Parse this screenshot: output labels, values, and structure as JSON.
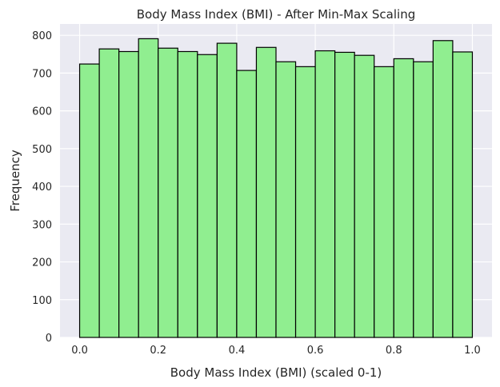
{
  "chart_data": {
    "type": "bar",
    "title": "Body Mass Index (BMI) - After Min-Max Scaling",
    "xlabel": "Body Mass Index (BMI) (scaled 0-1)",
    "ylabel": "Frequency",
    "xlim": [
      -0.05,
      1.05
    ],
    "ylim": [
      0,
      830
    ],
    "xticks": [
      0.0,
      0.2,
      0.4,
      0.6,
      0.8,
      1.0
    ],
    "xtick_labels": [
      "0.0",
      "0.2",
      "0.4",
      "0.6",
      "0.8",
      "1.0"
    ],
    "yticks": [
      0,
      100,
      200,
      300,
      400,
      500,
      600,
      700,
      800
    ],
    "ytick_labels": [
      "0",
      "100",
      "200",
      "300",
      "400",
      "500",
      "600",
      "700",
      "800"
    ],
    "bin_edges": [
      0.0,
      0.05,
      0.1,
      0.15,
      0.2,
      0.25,
      0.3,
      0.35,
      0.4,
      0.45,
      0.5,
      0.55,
      0.6,
      0.65,
      0.7,
      0.75,
      0.8,
      0.85,
      0.9,
      0.95,
      1.0
    ],
    "values": [
      724,
      764,
      757,
      791,
      766,
      757,
      749,
      779,
      707,
      768,
      730,
      717,
      759,
      755,
      747,
      717,
      738,
      730,
      786,
      756
    ],
    "grid": true,
    "colors": {
      "bar_fill": "#90ee90",
      "bar_edge": "#000000",
      "plot_background": "#eaeaf2",
      "grid": "#ffffff"
    }
  }
}
